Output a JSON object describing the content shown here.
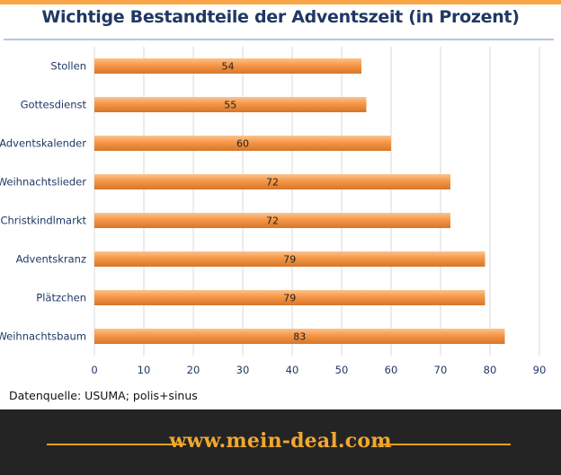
{
  "chart_data": {
    "type": "bar",
    "orientation": "horizontal",
    "title": "Wichtige Bestandteile der Adventszeit (in Prozent)",
    "categories": [
      "Stollen",
      "Gottesdienst",
      "Adventskalender",
      "Weihnachtslieder",
      "Christkindlmarkt",
      "Adventskranz",
      "Plätzchen",
      "Weihnachtsbaum"
    ],
    "values": [
      54,
      55,
      60,
      72,
      72,
      79,
      79,
      83
    ],
    "xlim": [
      0,
      90
    ],
    "xticks": [
      "0",
      "10",
      "20",
      "30",
      "40",
      "50",
      "60",
      "70",
      "80",
      "90"
    ],
    "xlabel": "",
    "ylabel": "",
    "grid": true,
    "bar_color": "#f79646",
    "label_color": "#1f3864"
  },
  "source": "Datenquelle: USUMA; polis+sinus",
  "footer": {
    "brand": "www.mein-deal.com",
    "line_color": "#e8a020"
  }
}
